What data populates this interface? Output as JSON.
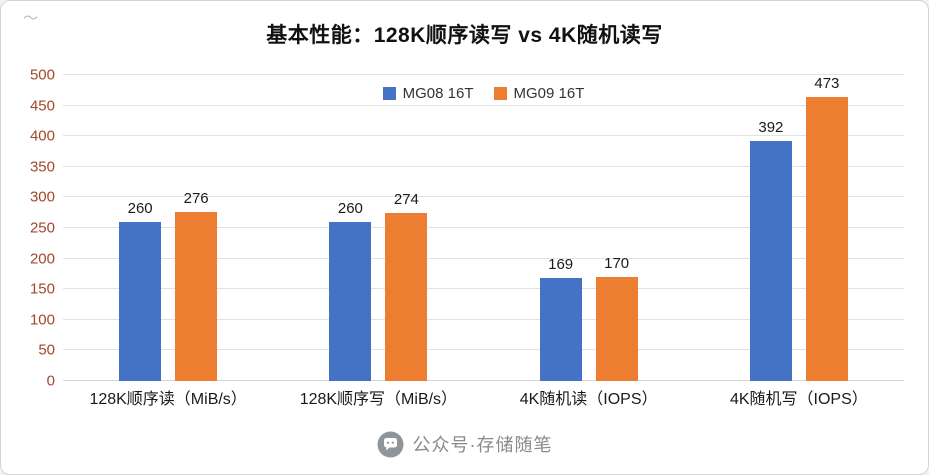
{
  "title": "基本性能：128K顺序读写 vs 4K随机读写",
  "corner_mark": "〜",
  "colors": {
    "series1": "#4472C4",
    "series2": "#ED7D31",
    "ytick_label": "#A5452C",
    "gridline": "#e2e2e2",
    "footer_text": "#8a8a8a"
  },
  "chart_data": {
    "type": "bar",
    "title": "基本性能：128K顺序读写 vs 4K随机读写",
    "categories": [
      "128K顺序读（MiB/s）",
      "128K顺序写（MiB/s）",
      "4K随机读（IOPS）",
      "4K随机写（IOPS）"
    ],
    "series": [
      {
        "name": "MG08 16T",
        "color": "#4472C4",
        "values": [
          260,
          260,
          169,
          392
        ]
      },
      {
        "name": "MG09 16T",
        "color": "#ED7D31",
        "values": [
          276,
          274,
          170,
          473
        ]
      }
    ],
    "xlabel": "",
    "ylabel": "",
    "ylim": [
      0,
      500
    ],
    "ytick_interval": 50,
    "grid": true,
    "legend_position": "top-center",
    "data_labels": true
  },
  "footer": {
    "label": "公众号·存储随笔",
    "icon": "chat-bubble-icon"
  }
}
